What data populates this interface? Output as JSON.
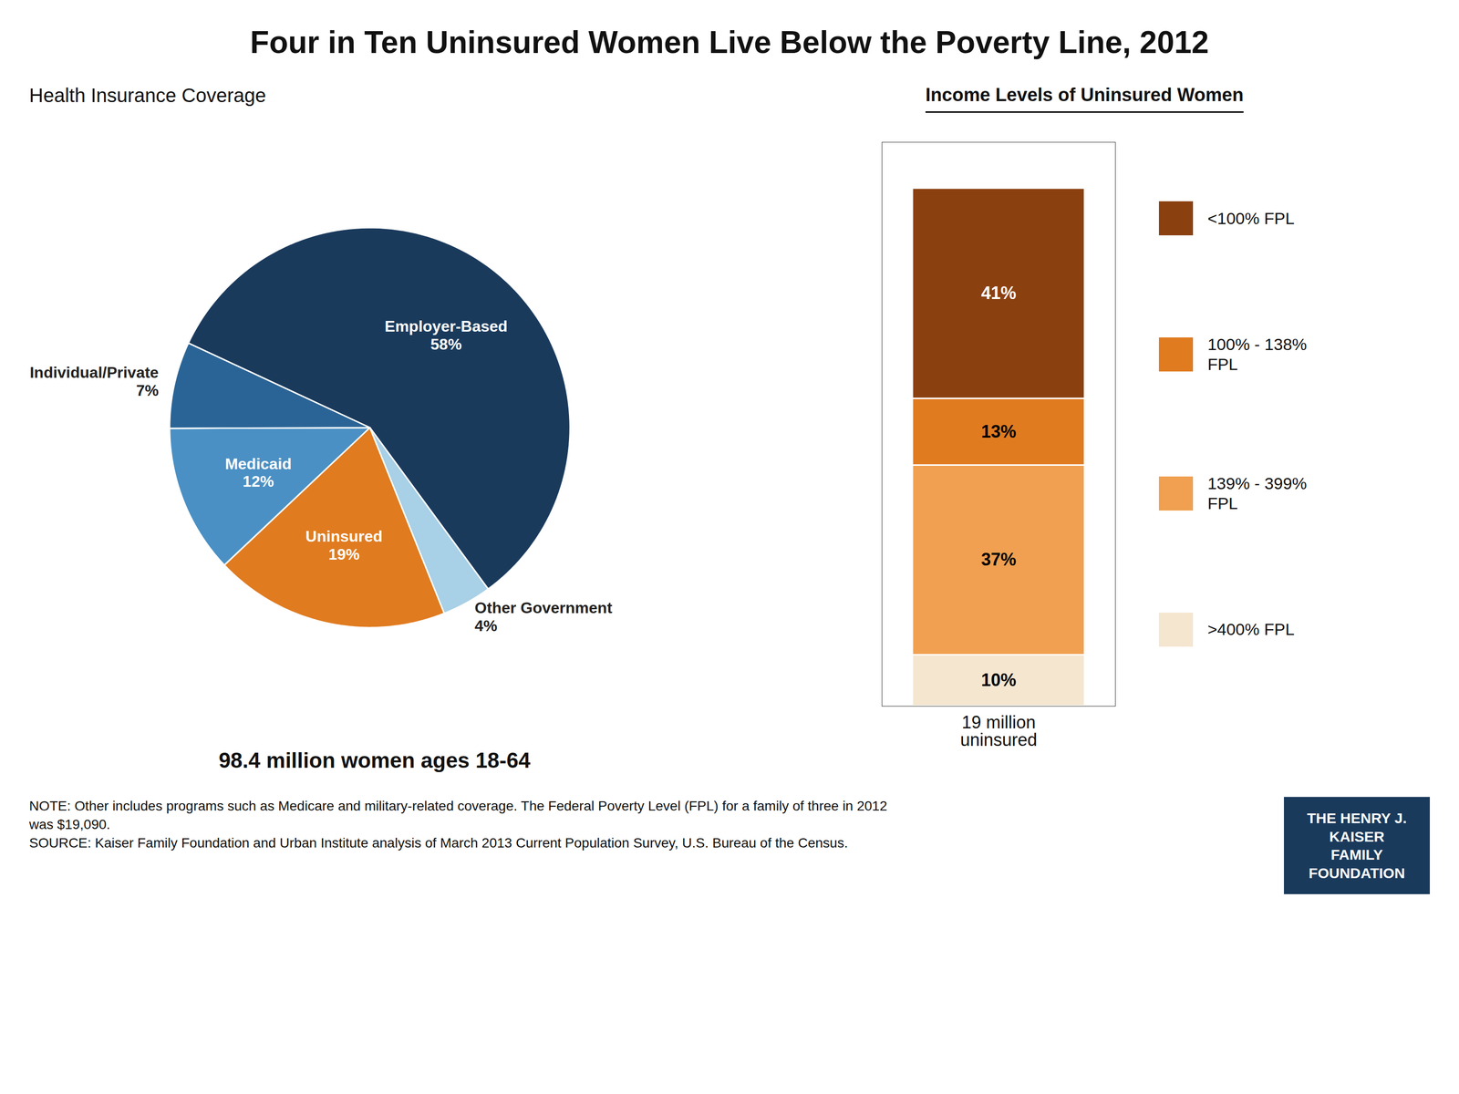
{
  "chart_data": [
    {
      "type": "pie",
      "title": "Four in Ten Uninsured Women Live Below the Poverty Line, 2012",
      "subtitle": "Health Insurance Coverage",
      "categories": [
        "Employer-Based",
        "Other Government",
        "Uninsured",
        "Medicaid",
        "Individual/Private"
      ],
      "values": [
        58,
        4,
        19,
        12,
        7
      ],
      "value_labels": [
        "58%",
        "4%",
        "19%",
        "12%",
        "7%"
      ],
      "colors": [
        "#1a3a5c",
        "#a8d0e6",
        "#e07b20",
        "#4a90c4",
        "#2a6496"
      ],
      "data_labels": true,
      "annotations": [
        "98.4 million women ages 18-64"
      ]
    },
    {
      "type": "bar",
      "title": "Income Levels of Uninsured Women",
      "stacked": true,
      "categories": [
        "19 million\nuninsured"
      ],
      "series": [
        {
          "name": ">400% FPL",
          "color": "#f5e6d0",
          "values": [
            10
          ],
          "value_labels": [
            "10%"
          ]
        },
        {
          "name": "139% - 399%\nFPL",
          "color": "#f0a050",
          "values": [
            37
          ],
          "value_labels": [
            "37%"
          ]
        },
        {
          "name": "100% - 138%\nFPL",
          "color": "#e07b20",
          "values": [
            13
          ],
          "value_labels": [
            "13%"
          ]
        },
        {
          "name": "<100% FPL",
          "color": "#8b4010",
          "values": [
            41
          ],
          "value_labels": [
            "41%"
          ]
        }
      ],
      "ylim": [
        0,
        110
      ],
      "tick_labels": "x",
      "data_labels": true,
      "legend": "right",
      "annotations": [
        "NOTE: Other includes programs such as Medicare and military-related coverage. The Federal Poverty Level (FPL) for a family of three in 2012\nwas $19,090.\nSOURCE: Kaiser Family Foundation and Urban Institute analysis of March 2013 Current Population Survey, U.S. Bureau of the Census.",
        "THE HENRY J.\nKAISER\nFAMILY\nFOUNDATION"
      ]
    }
  ]
}
